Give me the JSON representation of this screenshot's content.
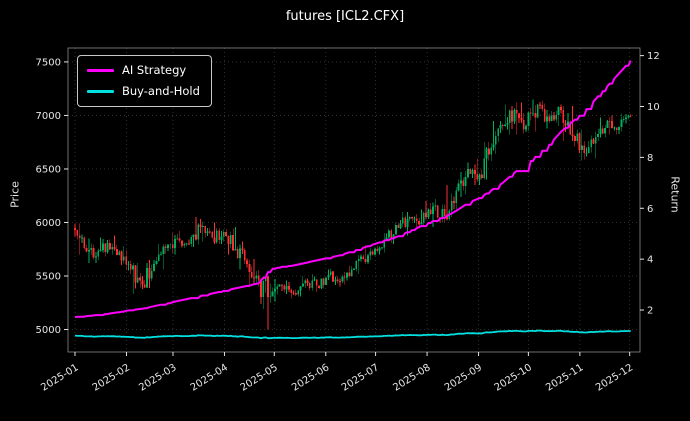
{
  "chart_data": {
    "type": "candlestick+line",
    "title": "futures [ICL2.CFX]",
    "ylabel_left": "Price",
    "ylabel_right": "Return",
    "background_color": "#000000",
    "grid_color": "#3d3d3d",
    "text_color": "#e6e6e6",
    "frame_color": "#8a8a8a",
    "legend_position": "upper-left",
    "price_ylim": [
      4790,
      7630
    ],
    "return_ylim": [
      0.35,
      12.3
    ],
    "price_ticks": [
      5000,
      5500,
      6000,
      6500,
      7000,
      7500
    ],
    "return_ticks": [
      2,
      4,
      6,
      8,
      10,
      12
    ],
    "x_ticks": {
      "labels": [
        "2025-01",
        "2025-02",
        "2025-03",
        "2025-04",
        "2025-05",
        "2025-06",
        "2025-07",
        "2025-08",
        "2025-09",
        "2025-10",
        "2025-11",
        "2025-12"
      ],
      "day_offsets": [
        0,
        31,
        59,
        90,
        120,
        151,
        181,
        212,
        243,
        273,
        304,
        334
      ],
      "total_days": 336
    },
    "candles": {
      "up_color": "#00b060",
      "down_color": "#fe3032",
      "weekly_ohlc": [
        [
          5950,
          5990,
          5700,
          5760
        ],
        [
          5760,
          5850,
          5620,
          5680
        ],
        [
          5680,
          5860,
          5650,
          5810
        ],
        [
          5810,
          5880,
          5690,
          5730
        ],
        [
          5730,
          5780,
          5520,
          5560
        ],
        [
          5560,
          5620,
          5330,
          5420
        ],
        [
          5420,
          5650,
          5390,
          5610
        ],
        [
          5610,
          5800,
          5560,
          5760
        ],
        [
          5760,
          5900,
          5700,
          5850
        ],
        [
          5850,
          5920,
          5760,
          5800
        ],
        [
          5800,
          6050,
          5770,
          5960
        ],
        [
          5960,
          6010,
          5820,
          5860
        ],
        [
          5860,
          6000,
          5800,
          5910
        ],
        [
          5910,
          5960,
          5700,
          5750
        ],
        [
          5750,
          5820,
          5560,
          5610
        ],
        [
          5610,
          5660,
          5400,
          5460
        ],
        [
          5460,
          5500,
          5000,
          5310
        ],
        [
          5310,
          5470,
          5260,
          5410
        ],
        [
          5410,
          5460,
          5290,
          5340
        ],
        [
          5340,
          5500,
          5310,
          5460
        ],
        [
          5460,
          5520,
          5350,
          5410
        ],
        [
          5410,
          5560,
          5380,
          5510
        ],
        [
          5510,
          5570,
          5400,
          5450
        ],
        [
          5450,
          5600,
          5420,
          5560
        ],
        [
          5560,
          5700,
          5520,
          5660
        ],
        [
          5660,
          5790,
          5610,
          5750
        ],
        [
          5750,
          5900,
          5700,
          5860
        ],
        [
          5860,
          6000,
          5800,
          5950
        ],
        [
          5950,
          6100,
          5880,
          6050
        ],
        [
          6050,
          6120,
          5940,
          6000
        ],
        [
          6000,
          6200,
          5960,
          6150
        ],
        [
          6150,
          6220,
          6000,
          6060
        ],
        [
          6060,
          6350,
          6020,
          6300
        ],
        [
          6300,
          6560,
          6240,
          6500
        ],
        [
          6500,
          6600,
          6350,
          6450
        ],
        [
          6450,
          6750,
          6400,
          6700
        ],
        [
          6700,
          6950,
          6640,
          6900
        ],
        [
          6900,
          7100,
          6820,
          7050
        ],
        [
          7050,
          7120,
          6820,
          6900
        ],
        [
          6900,
          7150,
          6850,
          7100
        ],
        [
          7100,
          7140,
          6880,
          6950
        ],
        [
          6950,
          7100,
          6900,
          7050
        ],
        [
          7050,
          7090,
          6760,
          6810
        ],
        [
          6810,
          6870,
          6580,
          6650
        ],
        [
          6650,
          6850,
          6600,
          6800
        ],
        [
          6800,
          6980,
          6760,
          6950
        ],
        [
          6950,
          7000,
          6820,
          6890
        ],
        [
          6890,
          7020,
          6850,
          6990
        ]
      ]
    },
    "series": [
      {
        "name": "AI Strategy",
        "color": "#ff00ff",
        "axis": "return",
        "start_value": 1.72,
        "weekly_values": [
          1.75,
          1.8,
          1.85,
          1.92,
          2.0,
          2.05,
          2.15,
          2.25,
          2.35,
          2.45,
          2.55,
          2.65,
          2.75,
          2.85,
          2.95,
          3.05,
          3.6,
          3.7,
          3.75,
          3.85,
          3.95,
          4.05,
          4.15,
          4.3,
          4.45,
          4.6,
          4.75,
          4.9,
          5.1,
          5.3,
          5.5,
          5.65,
          5.9,
          6.2,
          6.4,
          6.7,
          7.0,
          7.4,
          7.7,
          8.1,
          8.5,
          9.0,
          9.4,
          9.8,
          10.3,
          10.8,
          11.3,
          11.8
        ]
      },
      {
        "name": "Buy-and-Hold",
        "color": "#00e0e0",
        "axis": "return",
        "base_price": 5950,
        "weekly_values": [
          0.97,
          0.95,
          0.98,
          0.96,
          0.93,
          0.91,
          0.94,
          0.97,
          0.98,
          0.97,
          1.0,
          0.98,
          0.99,
          0.97,
          0.94,
          0.92,
          0.89,
          0.91,
          0.9,
          0.92,
          0.91,
          0.93,
          0.92,
          0.93,
          0.95,
          0.97,
          0.98,
          1.0,
          1.02,
          1.01,
          1.03,
          1.02,
          1.06,
          1.09,
          1.08,
          1.13,
          1.16,
          1.18,
          1.16,
          1.19,
          1.17,
          1.18,
          1.14,
          1.12,
          1.14,
          1.17,
          1.16,
          1.17
        ]
      }
    ]
  }
}
